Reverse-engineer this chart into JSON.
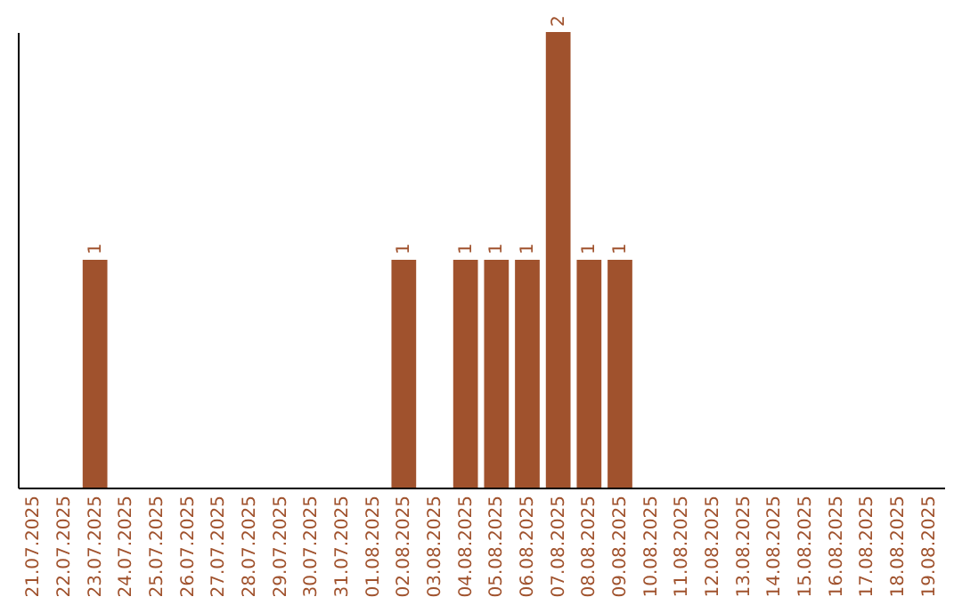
{
  "chart_data": {
    "type": "bar",
    "categories": [
      "21.07.2025",
      "22.07.2025",
      "23.07.2025",
      "24.07.2025",
      "25.07.2025",
      "26.07.2025",
      "27.07.2025",
      "28.07.2025",
      "29.07.2025",
      "30.07.2025",
      "31.07.2025",
      "01.08.2025",
      "02.08.2025",
      "03.08.2025",
      "04.08.2025",
      "05.08.2025",
      "06.08.2025",
      "07.08.2025",
      "08.08.2025",
      "09.08.2025",
      "10.08.2025",
      "11.08.2025",
      "12.08.2025",
      "13.08.2025",
      "14.08.2025",
      "15.08.2025",
      "16.08.2025",
      "17.08.2025",
      "18.08.2025",
      "19.08.2025"
    ],
    "values": [
      0,
      0,
      1,
      0,
      0,
      0,
      0,
      0,
      0,
      0,
      0,
      0,
      1,
      0,
      1,
      1,
      1,
      2,
      1,
      1,
      0,
      0,
      0,
      0,
      0,
      0,
      0,
      0,
      0,
      0
    ],
    "value_labels": [
      null,
      null,
      "1",
      null,
      null,
      null,
      null,
      null,
      null,
      null,
      null,
      null,
      "1",
      null,
      "1",
      "1",
      "1",
      "2",
      "1",
      "1",
      null,
      null,
      null,
      null,
      null,
      null,
      null,
      null,
      null,
      null
    ],
    "color": "#a0522d",
    "grid": false
  }
}
